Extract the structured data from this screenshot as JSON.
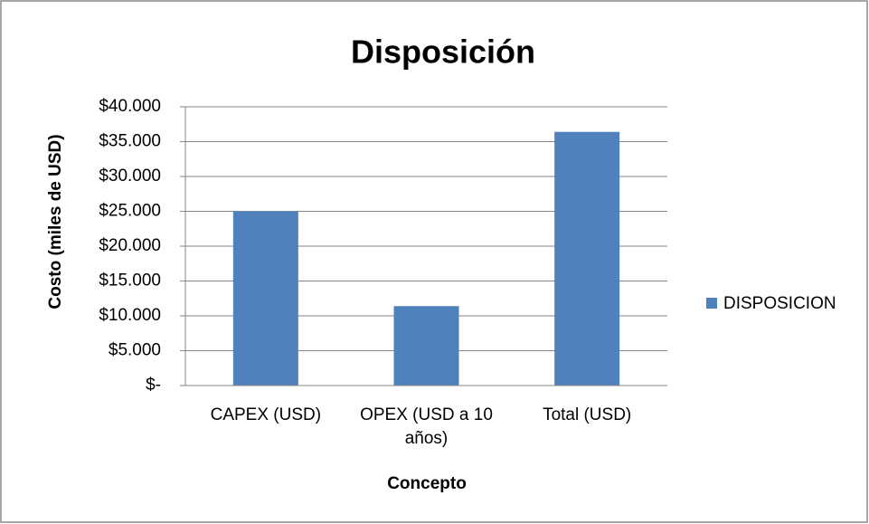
{
  "chart_data": {
    "type": "bar",
    "title": "Disposición",
    "x_label": "Concepto",
    "y_label": "Costo (miles de USD)",
    "categories": [
      "CAPEX (USD)",
      "OPEX (USD a 10 años)",
      "Total (USD)"
    ],
    "series": [
      {
        "name": "DISPOSICION",
        "color": "#4f81bd",
        "values": [
          25000,
          11400,
          36400
        ]
      }
    ],
    "ylim": [
      0,
      40000
    ],
    "yticks": [
      {
        "value": 0,
        "label": "$-"
      },
      {
        "value": 5000,
        "label": "$5.000"
      },
      {
        "value": 10000,
        "label": "$10.000"
      },
      {
        "value": 15000,
        "label": "$15.000"
      },
      {
        "value": 20000,
        "label": "$20.000"
      },
      {
        "value": 25000,
        "label": "$25.000"
      },
      {
        "value": 30000,
        "label": "$30.000"
      },
      {
        "value": 35000,
        "label": "$35.000"
      },
      {
        "value": 40000,
        "label": "$40.000"
      }
    ],
    "grid": true,
    "legend": "right"
  }
}
